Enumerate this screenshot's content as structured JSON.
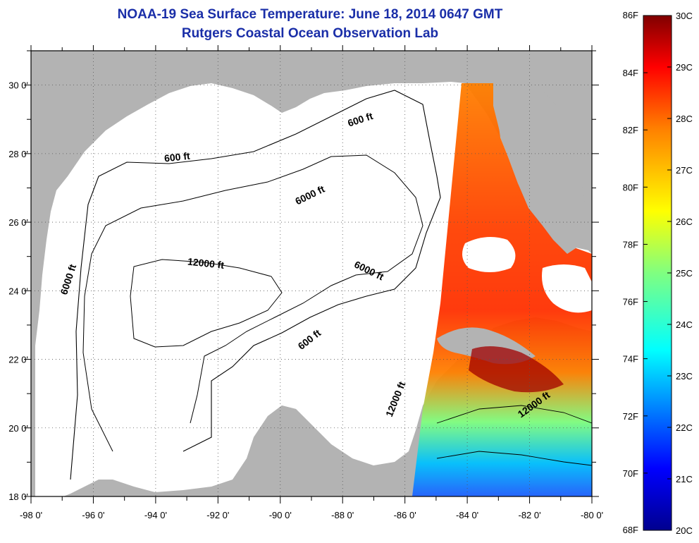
{
  "title_line1": "NOAA-19 Sea Surface Temperature:  June 18, 2014 0647 GMT",
  "title_line2": "Rutgers Coastal Ocean Observation Lab",
  "axes": {
    "x_ticks": [
      "-98 0'",
      "-96 0'",
      "-94 0'",
      "-92 0'",
      "-90 0'",
      "-88 0'",
      "-86 0'",
      "-84 0'",
      "-82 0'",
      "-80 0'"
    ],
    "y_ticks": [
      "30 0'",
      "28 0'",
      "26 0'",
      "24 0'",
      "22 0'",
      "20 0'",
      "18 0'"
    ],
    "lon_range": [
      -98,
      -80
    ],
    "lat_range": [
      18,
      31
    ]
  },
  "contour_labels": [
    {
      "text": "600 ft",
      "lon": -87.4,
      "lat": 28.9,
      "rot": -18
    },
    {
      "text": "600 ft",
      "lon": -93.3,
      "lat": 27.8,
      "rot": -6
    },
    {
      "text": "6000 ft",
      "lon": -89.0,
      "lat": 26.7,
      "rot": -26
    },
    {
      "text": "12000 ft",
      "lon": -92.4,
      "lat": 24.7,
      "rot": 6
    },
    {
      "text": "6000 ft",
      "lon": -87.2,
      "lat": 24.5,
      "rot": 26
    },
    {
      "text": "6000 ft",
      "lon": -96.7,
      "lat": 24.3,
      "rot": -72
    },
    {
      "text": "600 ft",
      "lon": -89.0,
      "lat": 22.5,
      "rot": -38
    },
    {
      "text": "12000 ft",
      "lon": -86.2,
      "lat": 20.8,
      "rot": -68
    },
    {
      "text": "12000 ft",
      "lon": -81.8,
      "lat": 20.6,
      "rot": -36
    }
  ],
  "colorbar": {
    "left_labels": [
      "86F",
      "84F",
      "82F",
      "80F",
      "78F",
      "76F",
      "74F",
      "72F",
      "70F",
      "68F"
    ],
    "right_labels": [
      "30C",
      "29C",
      "28C",
      "27C",
      "26C",
      "25C",
      "24C",
      "23C",
      "22C",
      "21C",
      "20C"
    ],
    "colors": [
      "#00008f",
      "#0000ff",
      "#0080ff",
      "#00ffff",
      "#80ff80",
      "#ffff00",
      "#ff8000",
      "#ff0000",
      "#800000"
    ]
  },
  "colors": {
    "land": "#b3b3b3",
    "water": "#ffffff",
    "title": "#1a2ea8"
  }
}
